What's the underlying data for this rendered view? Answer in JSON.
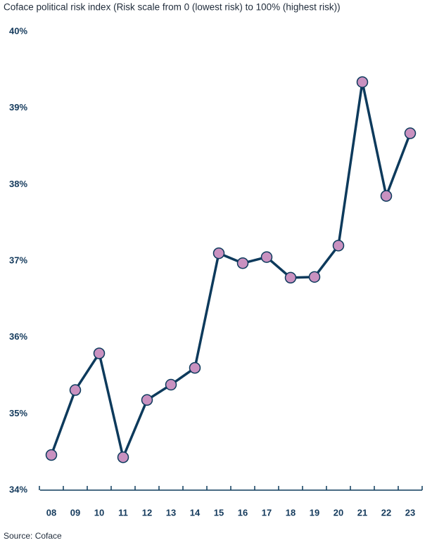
{
  "chart_data": {
    "type": "line",
    "title": "Coface political risk index (Risk scale from 0 (lowest risk) to 100% (highest risk))",
    "source": "Source: Coface",
    "categories": [
      "08",
      "09",
      "10",
      "11",
      "12",
      "13",
      "14",
      "15",
      "16",
      "17",
      "18",
      "19",
      "20",
      "21",
      "22",
      "23"
    ],
    "series": [
      {
        "color": "#0d3a5c",
        "marker_color": "#c991c0",
        "values": [
          34.46,
          35.31,
          35.79,
          34.43,
          35.18,
          35.38,
          35.6,
          37.1,
          36.97,
          37.05,
          36.78,
          36.79,
          37.2,
          39.34,
          37.85,
          38.67
        ]
      }
    ],
    "ylim": [
      34,
      40
    ],
    "yticks": [
      {
        "value": 34,
        "label": "34%"
      },
      {
        "value": 35,
        "label": "35%"
      },
      {
        "value": 36,
        "label": "36%"
      },
      {
        "value": 37,
        "label": "37%"
      },
      {
        "value": 38,
        "label": "38%"
      },
      {
        "value": 39,
        "label": "39%"
      },
      {
        "value": 40,
        "label": "40%"
      }
    ],
    "grid": false
  }
}
